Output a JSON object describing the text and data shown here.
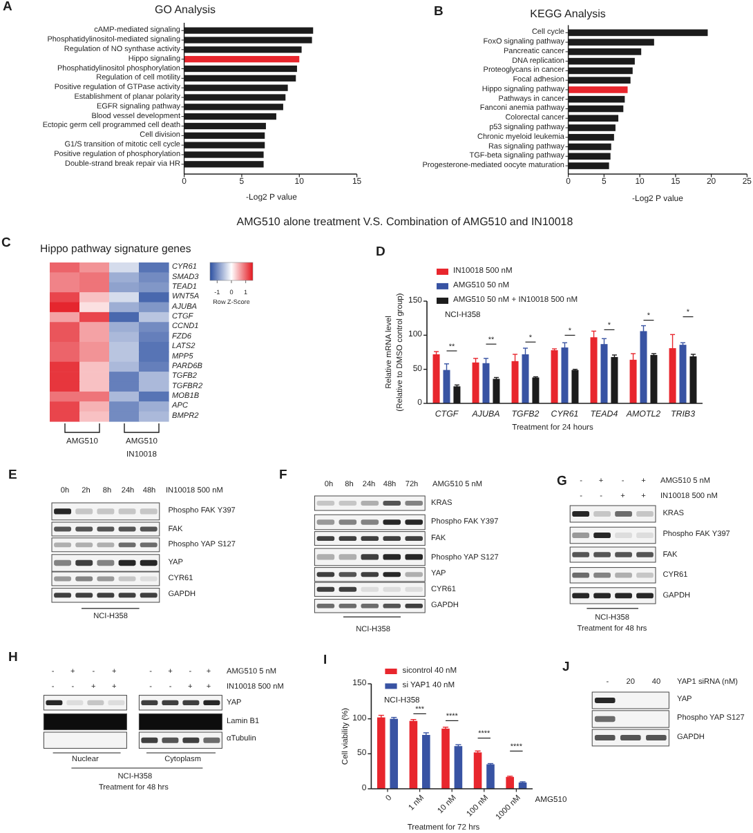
{
  "chart_data": [
    {
      "type": "bar",
      "orientation": "horizontal",
      "title": "GO Analysis",
      "xlabel": "-Log2 P value",
      "categories": [
        "cAMP-mediated signaling",
        "Phosphatidylinositol-mediated signaling",
        "Regulation of NO synthase activity",
        "Hippo signaling",
        "Phosphatidylinositol phosphorylation",
        "Regulation of cell motility",
        "Positive regulation of GTPase activity",
        "Establishment of planar polarity",
        "EGFR signaling pathway",
        "Blood vessel development",
        "Ectopic germ cell programmed cell death",
        "Cell division",
        "G1/S transition of mitotic cell cycle",
        "Positive regulation of phosphorylation",
        "Double-strand break repair via HR"
      ],
      "values": [
        11.2,
        11.1,
        10.2,
        10.0,
        9.8,
        9.7,
        9.0,
        8.8,
        8.6,
        8.0,
        7.1,
        7.0,
        7.0,
        6.9,
        6.9
      ],
      "colors": [
        "#1c1c1c",
        "#1c1c1c",
        "#1c1c1c",
        "#e8262d",
        "#1c1c1c",
        "#1c1c1c",
        "#1c1c1c",
        "#1c1c1c",
        "#1c1c1c",
        "#1c1c1c",
        "#1c1c1c",
        "#1c1c1c",
        "#1c1c1c",
        "#1c1c1c",
        "#1c1c1c"
      ],
      "xlim": [
        0,
        15
      ],
      "xticks": [
        0,
        5,
        10,
        15
      ],
      "annotations": [
        "A"
      ]
    },
    {
      "type": "bar",
      "orientation": "horizontal",
      "title": "KEGG Analysis",
      "xlabel": "-Log2 P value",
      "categories": [
        "Cell cycle",
        "FoxO signaling pathway",
        "Pancreatic cancer",
        "DNA replication",
        "Proteoglycans in cancer",
        "Focal adhesion",
        "Hippo signaling pathway",
        "Pathways in cancer",
        "Fanconi anemia pathway",
        "Colorectal cancer",
        "p53 signaling pathway",
        "Chronic myeloid leukemia",
        "Ras signaling pathway",
        "TGF-beta signaling pathway",
        "Progesterone-mediated oocyte maturation"
      ],
      "values": [
        19.5,
        12.0,
        10.2,
        9.3,
        9.0,
        8.7,
        8.3,
        7.9,
        7.7,
        7.0,
        6.6,
        6.4,
        6.0,
        5.9,
        5.7
      ],
      "colors": [
        "#1c1c1c",
        "#1c1c1c",
        "#1c1c1c",
        "#1c1c1c",
        "#1c1c1c",
        "#1c1c1c",
        "#e8262d",
        "#1c1c1c",
        "#1c1c1c",
        "#1c1c1c",
        "#1c1c1c",
        "#1c1c1c",
        "#1c1c1c",
        "#1c1c1c",
        "#1c1c1c"
      ],
      "xlim": [
        0,
        25
      ],
      "xticks": [
        0,
        5,
        10,
        15,
        20,
        25
      ],
      "annotations": [
        "B"
      ]
    },
    {
      "type": "other",
      "title": "AMG510 alone treatment V.S. Combination of AMG510 and IN10018"
    },
    {
      "type": "heatmap",
      "title": "Hippo pathway signature genes",
      "categories": [
        null,
        null,
        null,
        null
      ],
      "y_categories": [
        "CYR61",
        "SMAD3",
        "TEAD1",
        "WNT5A",
        "AJUBA",
        "CTGF",
        "CCND1",
        "FZD6",
        "LATS2",
        "MPP5",
        "PARD6B",
        "TGFB2",
        "TGFBR2",
        "MOB1B",
        "APC",
        "BMPR2"
      ],
      "cells": [
        [
          1.0,
          0.7,
          -0.3,
          -1.2
        ],
        [
          0.8,
          0.9,
          -0.7,
          -1.0
        ],
        [
          0.8,
          0.9,
          -0.8,
          -0.9
        ],
        [
          1.2,
          0.4,
          -0.3,
          -1.3
        ],
        [
          1.4,
          0.2,
          -0.7,
          -0.9
        ],
        [
          0.6,
          1.2,
          -1.3,
          -0.5
        ],
        [
          1.1,
          0.6,
          -0.7,
          -1.0
        ],
        [
          1.1,
          0.6,
          -0.6,
          -1.1
        ],
        [
          1.0,
          0.7,
          -0.5,
          -1.2
        ],
        [
          1.0,
          0.7,
          -0.5,
          -1.2
        ],
        [
          1.3,
          0.4,
          -0.6,
          -1.1
        ],
        [
          1.3,
          0.4,
          -1.1,
          -0.6
        ],
        [
          1.3,
          0.4,
          -1.1,
          -0.6
        ],
        [
          0.9,
          0.9,
          -0.6,
          -1.2
        ],
        [
          1.2,
          0.5,
          -1.0,
          -0.7
        ],
        [
          1.2,
          0.4,
          -1.0,
          -0.6
        ]
      ],
      "clim": [
        -1.5,
        1.5
      ],
      "cticks": [
        -1,
        0,
        1
      ],
      "clabel": "Row Z-Score",
      "annotations": [
        "C",
        "AMG510",
        "AMG510",
        "IN10018"
      ]
    },
    {
      "type": "bar",
      "categories": [
        "CTGF",
        "AJUBA",
        "TGFB2",
        "CYR61",
        "TEAD4",
        "AMOTL2",
        "TRIB3"
      ],
      "series": [
        {
          "name": "IN10018 500 nM",
          "color": "#e8262d",
          "values": [
            72,
            60,
            62,
            78,
            97,
            64,
            81
          ],
          "errors": [
            4,
            6,
            10,
            2,
            9,
            9,
            20
          ]
        },
        {
          "name": "AMG510 50 nM",
          "color": "#3853a3",
          "values": [
            49,
            59,
            72,
            82,
            87,
            106,
            86
          ],
          "errors": [
            9,
            7,
            9,
            7,
            8,
            8,
            3
          ]
        },
        {
          "name": "AMG510 50 nM + IN10018 500 nM",
          "color": "#1c1c1c",
          "values": [
            25,
            36,
            38,
            49,
            68,
            71,
            69
          ],
          "errors": [
            2,
            2,
            1,
            1,
            3,
            2,
            3
          ]
        }
      ],
      "ylim": [
        0,
        150
      ],
      "yticks": [
        0,
        50,
        100,
        150
      ],
      "ylabel": "Relative mRNA level\n(Relative to DMSO control group)",
      "xlabel": "Treatment for 24 hours",
      "legend": "top left",
      "annotations": [
        "D",
        "NCI-H358",
        "**",
        "**",
        "*",
        "*",
        "*",
        "*",
        "*"
      ]
    },
    {
      "type": "other",
      "annotations": [
        "E",
        "0h",
        "2h",
        "8h",
        "24h",
        "48h",
        "IN10018 500 nM",
        "Phospho FAK Y397",
        "FAK",
        "Phospho YAP S127",
        "YAP",
        "CYR61",
        "GAPDH",
        "NCI-H358"
      ]
    },
    {
      "type": "other",
      "annotations": [
        "F",
        "0h",
        "8h",
        "24h",
        "48h",
        "72h",
        "AMG510 5 nM",
        "KRAS",
        "Phospho FAK Y397",
        "FAK",
        "Phospho YAP S127",
        "YAP",
        "CYR61",
        "GAPDH",
        "NCI-H358"
      ]
    },
    {
      "type": "other",
      "annotations": [
        "G",
        "-",
        "+",
        "-",
        "+",
        "AMG510 5 nM",
        "-",
        "-",
        "+",
        "+",
        "IN10018 500 nM",
        "KRAS",
        "Phospho FAK Y397",
        "FAK",
        "CYR61",
        "GAPDH",
        "NCI-H358",
        "Treatment for 48 hrs"
      ]
    },
    {
      "type": "other",
      "annotations": [
        "H",
        "-",
        "+",
        "-",
        "+",
        "-",
        "+",
        "-",
        "+",
        "AMG510 5 nM",
        "-",
        "-",
        "+",
        "+",
        "-",
        "-",
        "+",
        "+",
        "IN10018 500 nM",
        "YAP",
        "Lamin B1",
        "αTubulin",
        "Nuclear",
        "Cytoplasm",
        "NCI-H358",
        "Treatment for 48 hrs"
      ]
    },
    {
      "type": "bar",
      "categories": [
        "0",
        "1 nM",
        "10 nM",
        "100 nM",
        "1000 nM"
      ],
      "series": [
        {
          "name": "sicontrol 40 nM",
          "color": "#e8262d",
          "values": [
            102,
            97,
            86,
            52,
            17
          ],
          "errors": [
            3,
            2,
            2,
            2,
            1
          ]
        },
        {
          "name": "si YAP1 40 nM",
          "color": "#3853a3",
          "values": [
            100,
            77,
            61,
            35,
            9
          ],
          "errors": [
            2,
            3,
            2,
            1,
            1
          ]
        }
      ],
      "ylim": [
        0,
        150
      ],
      "yticks": [
        0,
        50,
        100,
        150
      ],
      "ylabel": "Cell viability (%)",
      "xlabel": "AMG510",
      "legend": "top left",
      "annotations": [
        "I",
        "NCI-H358",
        "Treatment for 72 hrs",
        "***",
        "****",
        "****",
        "****"
      ]
    },
    {
      "type": "other",
      "annotations": [
        "J",
        "-",
        "20",
        "40",
        "YAP1 siRNA (nM)",
        "YAP",
        "Phospho YAP S127",
        "GAPDH"
      ]
    }
  ]
}
